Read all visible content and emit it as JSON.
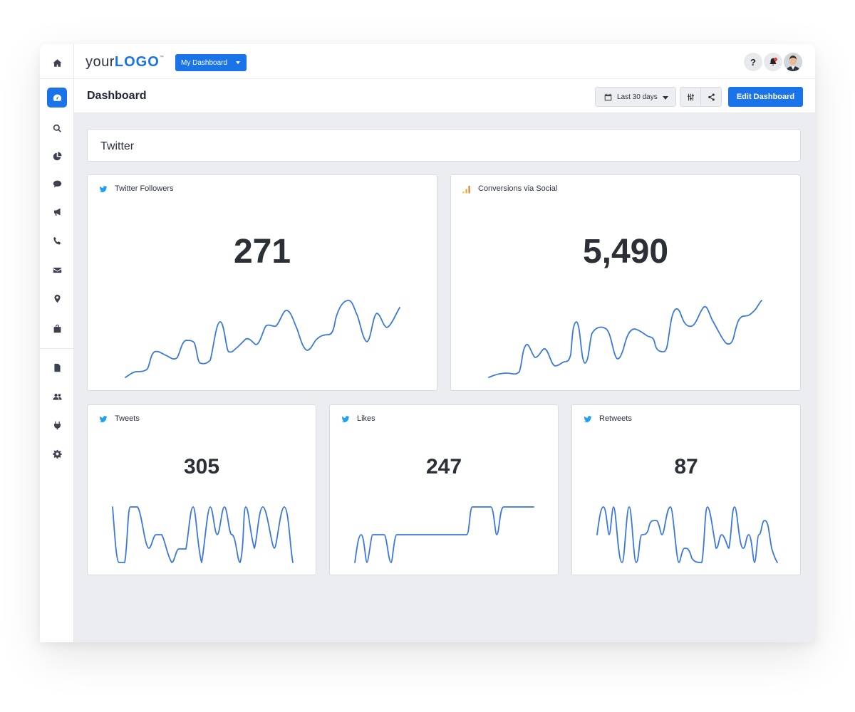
{
  "topbar": {
    "logo_light": "your",
    "logo_bold": "LOGO",
    "logo_tm": "™",
    "dashboard_select": "My Dashboard",
    "help_label": "?"
  },
  "subbar": {
    "page_title": "Dashboard",
    "date_range": "Last 30 days",
    "edit_button": "Edit Dashboard"
  },
  "section": {
    "title": "Twitter"
  },
  "sidebar": {
    "items": [
      "home-icon",
      "dashboard-icon",
      "search-icon",
      "pie-chart-icon",
      "chat-icon",
      "megaphone-icon",
      "phone-icon",
      "mail-icon",
      "map-pin-icon",
      "shopping-bag-icon",
      "file-icon",
      "users-icon",
      "plug-icon",
      "gear-icon"
    ],
    "active": "dashboard-icon"
  },
  "colors": {
    "accent": "#1a73e8",
    "twitter": "#1da1f2",
    "line": "#3a78e0",
    "chart_orange": "#f4a01c"
  },
  "cards": [
    {
      "id": "twitter-followers",
      "title": "Twitter Followers",
      "value": "271",
      "icon": "twitter-icon",
      "trend": [
        2,
        6,
        7,
        18,
        15,
        14,
        22,
        23,
        10,
        11,
        26,
        13,
        17,
        20,
        17,
        24,
        26,
        32,
        18,
        14,
        24,
        25,
        36,
        33,
        17,
        31,
        25,
        31
      ]
    },
    {
      "id": "conversions-social",
      "title": "Conversions via Social",
      "value": "5,490",
      "icon": "bar-chart-icon",
      "trend": [
        0,
        2,
        3,
        2,
        3,
        18,
        10,
        17,
        8,
        8,
        29,
        7,
        25,
        24,
        15,
        22,
        25,
        21,
        23,
        13,
        36,
        28,
        25,
        35,
        28,
        18,
        12,
        27,
        30,
        38
      ]
    },
    {
      "id": "tweets",
      "title": "Tweets",
      "value": "305",
      "icon": "twitter-icon",
      "trend": [
        1,
        3,
        0,
        0,
        3,
        3,
        1,
        2,
        1,
        1,
        2,
        1,
        2,
        0,
        1,
        1,
        3,
        3,
        0,
        3,
        1,
        3,
        0,
        3,
        1,
        2,
        3,
        3,
        2,
        1,
        3,
        0
      ]
    },
    {
      "id": "likes",
      "title": "Likes",
      "value": "247",
      "icon": "twitter-icon",
      "trend": [
        0,
        2,
        0,
        2,
        2,
        0,
        2,
        2,
        2,
        2,
        2,
        2,
        2,
        2,
        2,
        2,
        2,
        2,
        2,
        4,
        4,
        4,
        4,
        2,
        4,
        4,
        4,
        4,
        4
      ]
    },
    {
      "id": "retweets",
      "title": "Retweets",
      "value": "87",
      "icon": "twitter-icon",
      "trend": [
        2,
        4,
        2,
        4,
        0,
        4,
        0,
        2,
        2,
        3,
        3,
        2,
        4,
        0,
        1,
        1,
        0,
        4,
        2,
        2,
        4,
        2,
        3,
        0,
        2,
        0,
        3,
        3,
        0
      ]
    }
  ]
}
